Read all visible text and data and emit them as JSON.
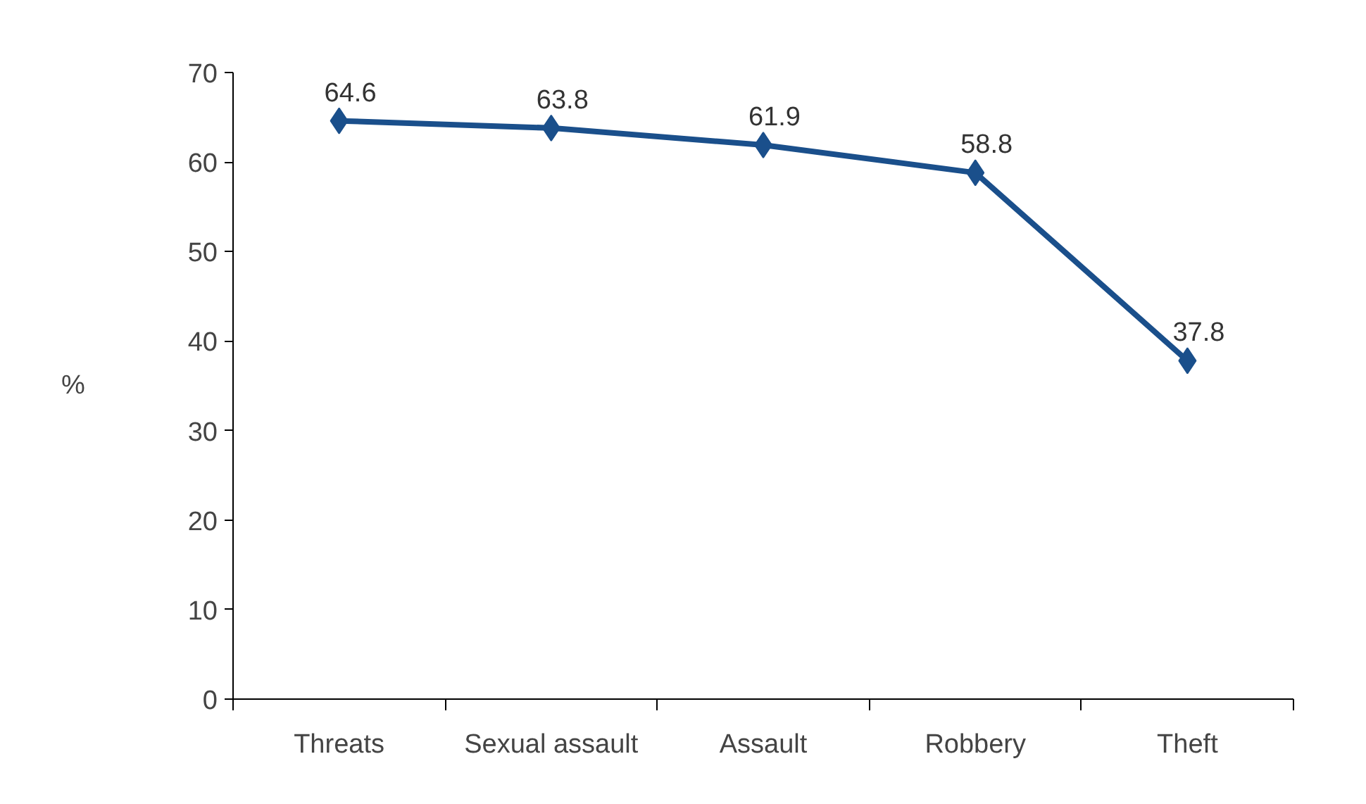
{
  "chart_data": {
    "type": "line",
    "ylabel": "%",
    "categories": [
      "Threats",
      "Sexual assault",
      "Assault",
      "Robbery",
      "Theft"
    ],
    "series": [
      {
        "color": "#1a4f8b",
        "values": [
          64.6,
          63.8,
          61.9,
          58.8,
          37.8
        ]
      }
    ],
    "ylim": [
      0,
      70
    ],
    "yticks": [
      0,
      10,
      20,
      30,
      40,
      50,
      60,
      70
    ],
    "marker": "diamond",
    "line_style": "solid",
    "data_labels": true,
    "grid": false
  }
}
